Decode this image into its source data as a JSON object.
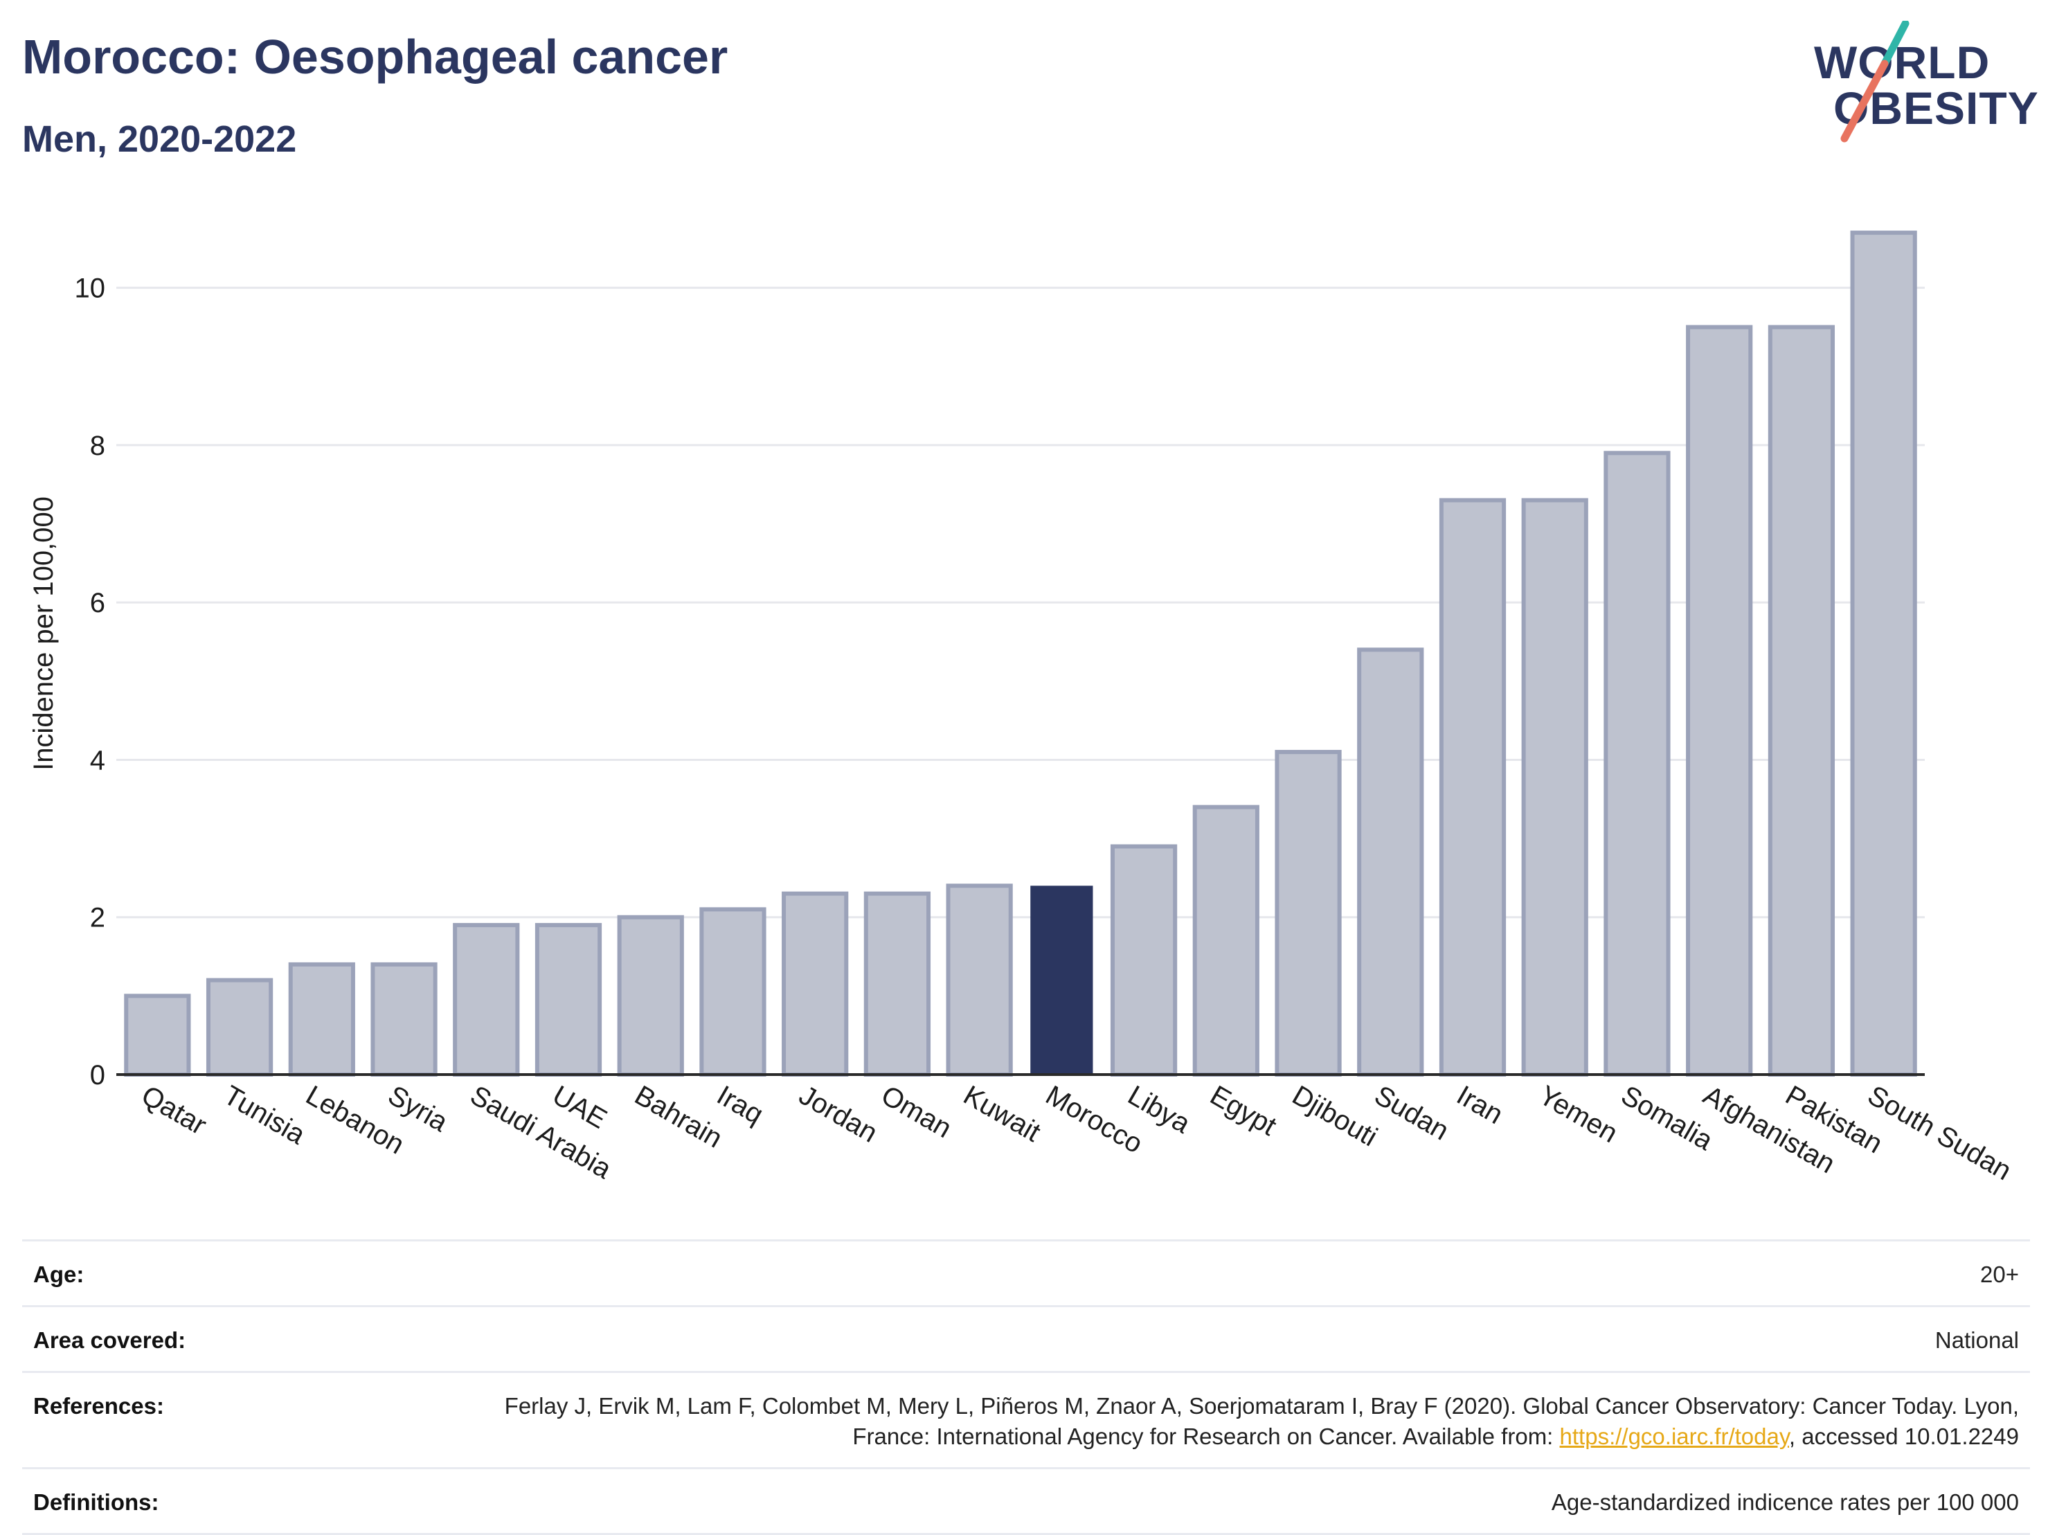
{
  "header": {
    "title": "Morocco: Oesophageal cancer",
    "subtitle": "Men, 2020-2022"
  },
  "logo": {
    "line1": "WORLD",
    "line2": "OBESITY",
    "slash_colors": [
      "#2fb5a8",
      "#e8735f"
    ]
  },
  "colors": {
    "bar_default": "#bec2cf",
    "bar_default_stroke": "#9ba2b9",
    "bar_highlight": "#2b3660",
    "text": "#1c1c1c",
    "grid": "#e6e7ec",
    "link": "#e6a817"
  },
  "chart_data": {
    "type": "bar",
    "ylabel": "Incidence per 100,000",
    "ylim": [
      0,
      11
    ],
    "yticks": [
      0,
      2,
      4,
      6,
      8,
      10
    ],
    "grid": true,
    "highlight": "Morocco",
    "categories": [
      "Qatar",
      "Tunisia",
      "Lebanon",
      "Syria",
      "Saudi Arabia",
      "UAE",
      "Bahrain",
      "Iraq",
      "Jordan",
      "Oman",
      "Kuwait",
      "Morocco",
      "Libya",
      "Egypt",
      "Djibouti",
      "Sudan",
      "Iran",
      "Yemen",
      "Somalia",
      "Afghanistan",
      "Pakistan",
      "South Sudan"
    ],
    "values": [
      1.0,
      1.2,
      1.4,
      1.4,
      1.9,
      1.9,
      2.0,
      2.1,
      2.3,
      2.3,
      2.4,
      2.4,
      2.9,
      3.4,
      4.1,
      5.4,
      7.3,
      7.3,
      7.9,
      9.5,
      9.5,
      10.7
    ]
  },
  "info": {
    "age_label": "Age:",
    "age_value": "20+",
    "area_label": "Area covered:",
    "area_value": "National",
    "ref_label": "References:",
    "ref_text_1": "Ferlay J, Ervik M, Lam F, Colombet M, Mery L, Piñeros M, Znaor A, Soerjomataram I, Bray F (2020). Global Cancer Observatory: Cancer Today. Lyon, France: International Agency for Research on Cancer. Available from: ",
    "ref_link": "https://gco.iarc.fr/today",
    "ref_text_2": ", accessed 10.01.2249",
    "def_label": "Definitions:",
    "def_value": "Age-standardized indicence rates per 100 000"
  }
}
